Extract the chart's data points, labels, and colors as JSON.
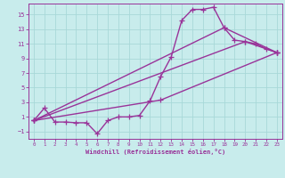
{
  "xlabel": "Windchill (Refroidissement éolien,°C)",
  "bg_color": "#c8ecec",
  "grid_color": "#a8d8d8",
  "line_color": "#993399",
  "text_color": "#993399",
  "xlim": [
    -0.5,
    23.5
  ],
  "ylim": [
    -2.0,
    16.5
  ],
  "xticks": [
    0,
    1,
    2,
    3,
    4,
    5,
    6,
    7,
    8,
    9,
    10,
    11,
    12,
    13,
    14,
    15,
    16,
    17,
    18,
    19,
    20,
    21,
    22,
    23
  ],
  "yticks": [
    -1,
    1,
    3,
    5,
    7,
    9,
    11,
    13,
    15
  ],
  "line1_x": [
    0,
    1,
    2,
    3,
    4,
    5,
    6,
    7,
    8,
    9,
    10,
    11,
    12,
    13,
    14,
    15,
    16,
    17,
    18,
    19,
    20,
    21,
    22,
    23
  ],
  "line1_y": [
    0.5,
    2.2,
    0.3,
    0.3,
    0.2,
    0.2,
    -1.3,
    0.5,
    1.0,
    1.0,
    1.2,
    3.2,
    6.5,
    9.2,
    14.2,
    15.7,
    15.7,
    16.0,
    13.2,
    11.5,
    11.3,
    11.0,
    10.3,
    9.8
  ],
  "line2_x": [
    0,
    12,
    23
  ],
  "line2_y": [
    0.5,
    3.3,
    9.8
  ],
  "line3_x": [
    0,
    20,
    23
  ],
  "line3_y": [
    0.5,
    11.3,
    9.8
  ],
  "line4_x": [
    0,
    18,
    23
  ],
  "line4_y": [
    0.5,
    13.2,
    9.8
  ],
  "marker": "+",
  "markersize": 4,
  "linewidth": 1.0
}
